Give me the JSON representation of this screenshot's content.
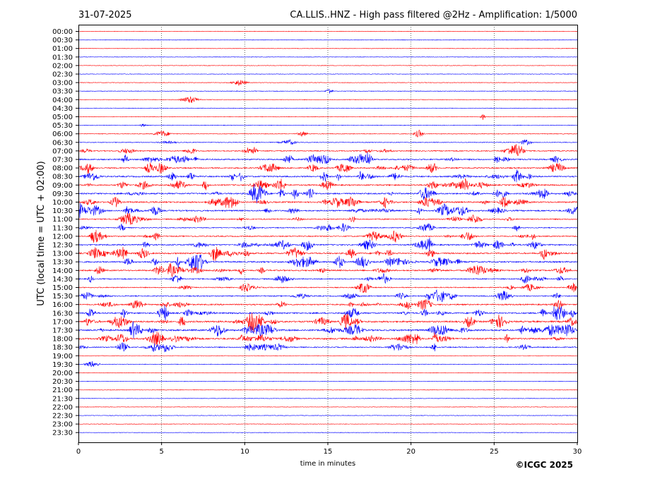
{
  "header": {
    "date": "31-07-2025",
    "title": "CA.LLIS..HNZ - High pass filtered @2Hz - Amplification: 1/5000"
  },
  "footer": {
    "copyright": "©ICGC 2025"
  },
  "chart_data": {
    "type": "line",
    "subtype": "helicorder",
    "xlabel": "time in minutes",
    "ylabel": "UTC (local time = UTC + 02:00)",
    "xlim": [
      0,
      30
    ],
    "x_ticks": [
      0,
      5,
      10,
      15,
      20,
      25,
      30
    ],
    "x_tick_labels": [
      "0",
      "5",
      "10",
      "15",
      "20",
      "25",
      "30"
    ],
    "grid": "vertical dotted lines at 5-minute intervals",
    "row_labels": [
      "00:00",
      "00:30",
      "01:00",
      "01:30",
      "02:00",
      "02:30",
      "03:00",
      "03:30",
      "04:00",
      "04:30",
      "05:00",
      "05:30",
      "06:00",
      "06:30",
      "07:00",
      "07:30",
      "08:00",
      "08:30",
      "09:00",
      "09:30",
      "10:00",
      "10:30",
      "11:00",
      "11:30",
      "12:00",
      "12:30",
      "13:00",
      "13:30",
      "14:00",
      "14:30",
      "15:00",
      "15:30",
      "16:00",
      "16:30",
      "17:00",
      "17:30",
      "18:00",
      "18:30",
      "19:00",
      "19:30",
      "20:00",
      "20:30",
      "21:00",
      "21:30",
      "22:00",
      "22:30",
      "23:00",
      "23:30"
    ],
    "trace_colors": [
      "#ff0000",
      "#0000ff"
    ],
    "activity": [
      0,
      0,
      0,
      0,
      0,
      0,
      0.05,
      0.05,
      0.05,
      0,
      0.05,
      0.05,
      0.12,
      0.15,
      0.35,
      0.55,
      0.5,
      0.6,
      0.55,
      0.6,
      0.6,
      0.6,
      0.4,
      0.3,
      0.4,
      0.55,
      0.6,
      0.65,
      0.6,
      0.4,
      0.3,
      0.4,
      0.55,
      0.65,
      0.75,
      0.8,
      0.75,
      0.4,
      0,
      0.05,
      0,
      0,
      0,
      0,
      0,
      0,
      0,
      0
    ]
  }
}
